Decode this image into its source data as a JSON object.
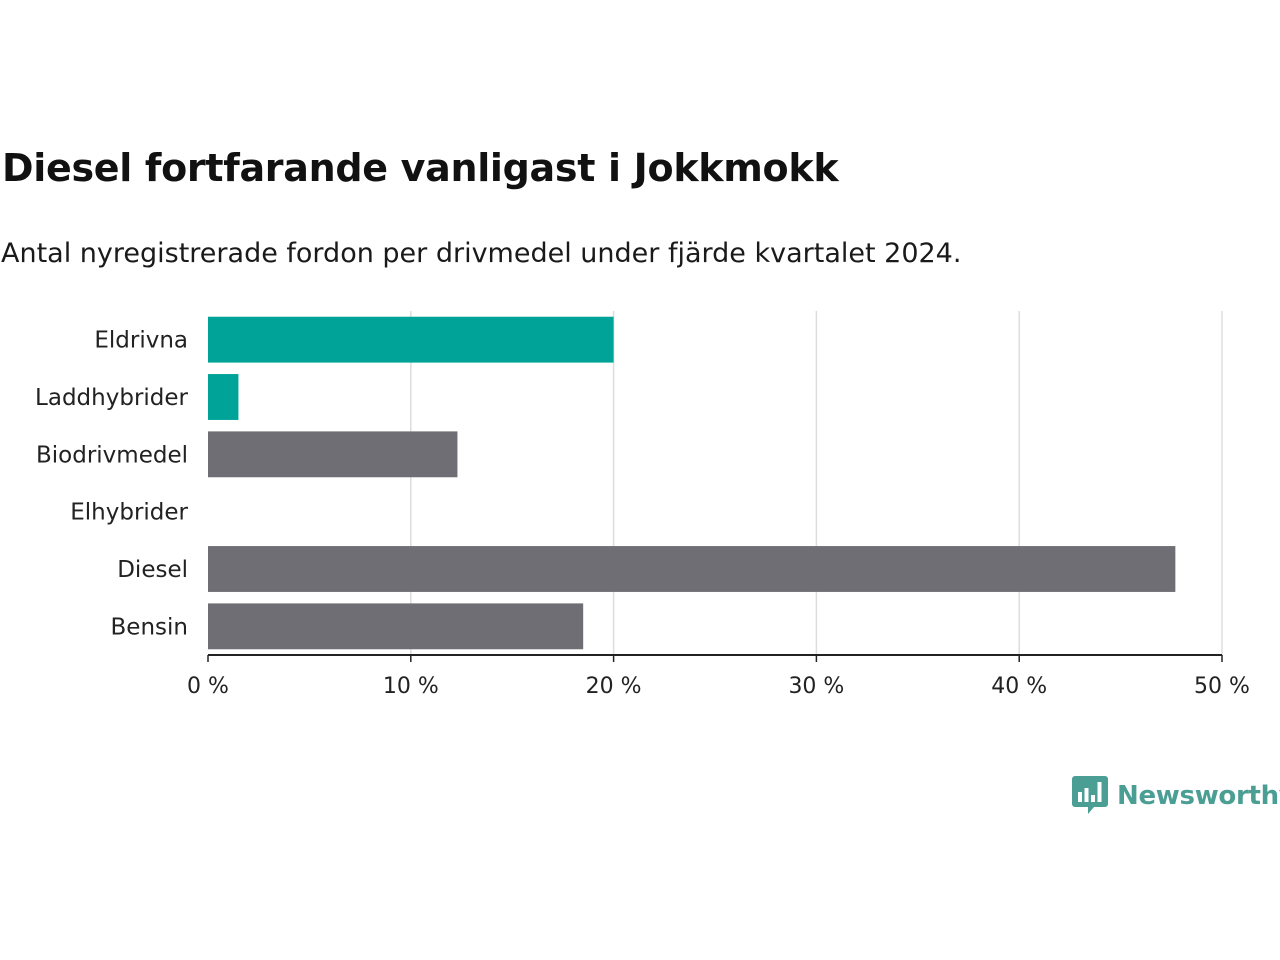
{
  "title": "Diesel fortfarande vanligast i Jokkmokk",
  "subtitle": "Antal nyregistrerade fordon per drivmedel under fjärde kvartalet 2024.",
  "brand": {
    "name": "Newsworthy",
    "icon": "newsworthy-logo-icon",
    "color": "#4a9e93"
  },
  "colors": {
    "highlight": "#00a398",
    "default": "#6f6e75",
    "grid": "#dddddd",
    "axis": "#222222"
  },
  "chart_data": {
    "type": "bar",
    "orientation": "horizontal",
    "categories": [
      "Eldrivna",
      "Laddhybrider",
      "Biodrivmedel",
      "Elhybrider",
      "Diesel",
      "Bensin"
    ],
    "values": [
      20.0,
      1.5,
      12.3,
      0,
      47.7,
      18.5
    ],
    "highlight": [
      true,
      true,
      false,
      false,
      false,
      false
    ],
    "xlim": [
      0,
      50
    ],
    "xticks": [
      0,
      10,
      20,
      30,
      40,
      50
    ],
    "tick_labels": [
      "0 %",
      "10 %",
      "20 %",
      "30 %",
      "40 %",
      "50 %"
    ],
    "grid": true
  }
}
